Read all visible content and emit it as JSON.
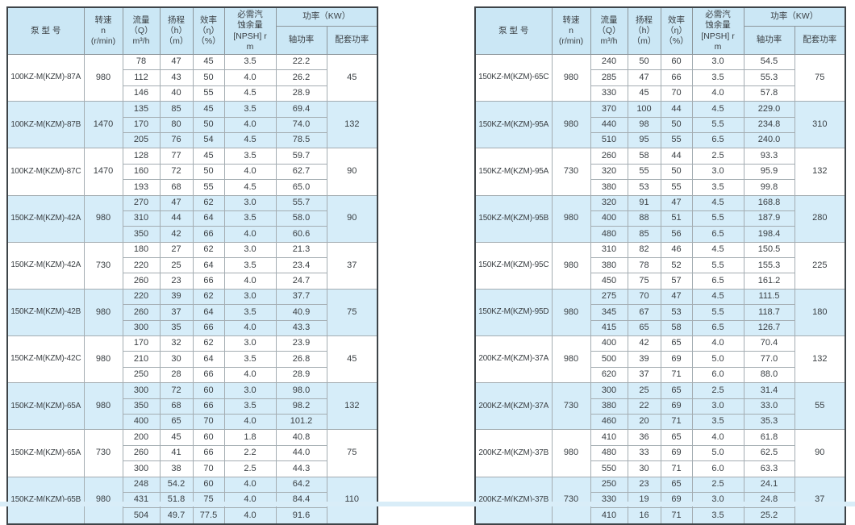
{
  "palette": {
    "header_bg": "#cbe7f5",
    "row_highlight_bg": "#d6edf9",
    "outer_border": "#3e4448",
    "inner_border": "#a4adb2",
    "group_border": "#6b7377",
    "page_bottom_strip": "#d9edf8",
    "text": "#3a3f43"
  },
  "header": {
    "model": "泵   型   号",
    "speed": "转速\nn\n(r/min)",
    "flow": "流量\n（Q）\nm³/h",
    "head": "扬程\n（h）\n（m）",
    "efficiency": "效率\n（η）\n（%）",
    "npsh": "必需汽\n蚀余量\n[NPSH] r\nm",
    "power": "功率（KW）",
    "shaft_power": "轴功率",
    "matching_power": "配套功率"
  },
  "tables": [
    {
      "groups": [
        {
          "model": "100KZ-M(KZM)-87A",
          "speed": "980",
          "highlight": false,
          "matching": "45",
          "rows": [
            [
              "78",
              "47",
              "45",
              "3.5",
              "22.2"
            ],
            [
              "112",
              "43",
              "50",
              "4.0",
              "26.2"
            ],
            [
              "146",
              "40",
              "55",
              "4.5",
              "28.9"
            ]
          ]
        },
        {
          "model": "100KZ-M(KZM)-87B",
          "speed": "1470",
          "highlight": true,
          "matching": "132",
          "rows": [
            [
              "135",
              "85",
              "45",
              "3.5",
              "69.4"
            ],
            [
              "170",
              "80",
              "50",
              "4.0",
              "74.0"
            ],
            [
              "205",
              "76",
              "54",
              "4.5",
              "78.5"
            ]
          ]
        },
        {
          "model": "100KZ-M(KZM)-87C",
          "speed": "1470",
          "highlight": false,
          "matching": "90",
          "rows": [
            [
              "128",
              "77",
              "45",
              "3.5",
              "59.7"
            ],
            [
              "160",
              "72",
              "50",
              "4.0",
              "62.7"
            ],
            [
              "193",
              "68",
              "55",
              "4.5",
              "65.0"
            ]
          ]
        },
        {
          "model": "150KZ-M(KZM)-42A",
          "speed": "980",
          "highlight": true,
          "matching": "90",
          "rows": [
            [
              "270",
              "47",
              "62",
              "3.0",
              "55.7"
            ],
            [
              "310",
              "44",
              "64",
              "3.5",
              "58.0"
            ],
            [
              "350",
              "42",
              "66",
              "4.0",
              "60.6"
            ]
          ]
        },
        {
          "model": "150KZ-M(KZM)-42A",
          "speed": "730",
          "highlight": false,
          "matching": "37",
          "rows": [
            [
              "180",
              "27",
              "62",
              "3.0",
              "21.3"
            ],
            [
              "220",
              "25",
              "64",
              "3.5",
              "23.4"
            ],
            [
              "260",
              "23",
              "66",
              "4.0",
              "24.7"
            ]
          ]
        },
        {
          "model": "150KZ-M(KZM)-42B",
          "speed": "980",
          "highlight": true,
          "matching": "75",
          "rows": [
            [
              "220",
              "39",
              "62",
              "3.0",
              "37.7"
            ],
            [
              "260",
              "37",
              "64",
              "3.5",
              "40.9"
            ],
            [
              "300",
              "35",
              "66",
              "4.0",
              "43.3"
            ]
          ]
        },
        {
          "model": "150KZ-M(KZM)-42C",
          "speed": "980",
          "highlight": false,
          "matching": "45",
          "rows": [
            [
              "170",
              "32",
              "62",
              "3.0",
              "23.9"
            ],
            [
              "210",
              "30",
              "64",
              "3.5",
              "26.8"
            ],
            [
              "250",
              "28",
              "66",
              "4.0",
              "28.9"
            ]
          ]
        },
        {
          "model": "150KZ-M(KZM)-65A",
          "speed": "980",
          "highlight": true,
          "matching": "132",
          "rows": [
            [
              "300",
              "72",
              "60",
              "3.0",
              "98.0"
            ],
            [
              "350",
              "68",
              "66",
              "3.5",
              "98.2"
            ],
            [
              "400",
              "65",
              "70",
              "4.0",
              "101.2"
            ]
          ]
        },
        {
          "model": "150KZ-M(KZM)-65A",
          "speed": "730",
          "highlight": false,
          "matching": "75",
          "rows": [
            [
              "200",
              "45",
              "60",
              "1.8",
              "40.8"
            ],
            [
              "260",
              "41",
              "66",
              "2.2",
              "44.0"
            ],
            [
              "300",
              "38",
              "70",
              "2.5",
              "44.3"
            ]
          ]
        },
        {
          "model": "150KZ-M(KZM)-65B",
          "speed": "980",
          "highlight": true,
          "matching": "110",
          "rows": [
            [
              "248",
              "54.2",
              "60",
              "4.0",
              "64.2"
            ],
            [
              "431",
              "51.8",
              "75",
              "4.0",
              "84.4"
            ],
            [
              "504",
              "49.7",
              "77.5",
              "4.0",
              "91.6"
            ]
          ]
        }
      ]
    },
    {
      "groups": [
        {
          "model": "150KZ-M(KZM)-65C",
          "speed": "980",
          "highlight": false,
          "matching": "75",
          "rows": [
            [
              "240",
              "50",
              "60",
              "3.0",
              "54.5"
            ],
            [
              "285",
              "47",
              "66",
              "3.5",
              "55.3"
            ],
            [
              "330",
              "45",
              "70",
              "4.0",
              "57.8"
            ]
          ]
        },
        {
          "model": "150KZ-M(KZM)-95A",
          "speed": "980",
          "highlight": true,
          "matching": "310",
          "rows": [
            [
              "370",
              "100",
              "44",
              "4.5",
              "229.0"
            ],
            [
              "440",
              "98",
              "50",
              "5.5",
              "234.8"
            ],
            [
              "510",
              "95",
              "55",
              "6.5",
              "240.0"
            ]
          ]
        },
        {
          "model": "150KZ-M(KZM)-95A",
          "speed": "730",
          "highlight": false,
          "matching": "132",
          "rows": [
            [
              "260",
              "58",
              "44",
              "2.5",
              "93.3"
            ],
            [
              "320",
              "55",
              "50",
              "3.0",
              "95.9"
            ],
            [
              "380",
              "53",
              "55",
              "3.5",
              "99.8"
            ]
          ]
        },
        {
          "model": "150KZ-M(KZM)-95B",
          "speed": "980",
          "highlight": true,
          "matching": "280",
          "rows": [
            [
              "320",
              "91",
              "47",
              "4.5",
              "168.8"
            ],
            [
              "400",
              "88",
              "51",
              "5.5",
              "187.9"
            ],
            [
              "480",
              "85",
              "56",
              "6.5",
              "198.4"
            ]
          ]
        },
        {
          "model": "150KZ-M(KZM)-95C",
          "speed": "980",
          "highlight": false,
          "matching": "225",
          "rows": [
            [
              "310",
              "82",
              "46",
              "4.5",
              "150.5"
            ],
            [
              "380",
              "78",
              "52",
              "5.5",
              "155.3"
            ],
            [
              "450",
              "75",
              "57",
              "6.5",
              "161.2"
            ]
          ]
        },
        {
          "model": "150KZ-M(KZM)-95D",
          "speed": "980",
          "highlight": true,
          "matching": "180",
          "rows": [
            [
              "275",
              "70",
              "47",
              "4.5",
              "111.5"
            ],
            [
              "345",
              "67",
              "53",
              "5.5",
              "118.7"
            ],
            [
              "415",
              "65",
              "58",
              "6.5",
              "126.7"
            ]
          ]
        },
        {
          "model": "200KZ-M(KZM)-37A",
          "speed": "980",
          "highlight": false,
          "matching": "132",
          "rows": [
            [
              "400",
              "42",
              "65",
              "4.0",
              "70.4"
            ],
            [
              "500",
              "39",
              "69",
              "5.0",
              "77.0"
            ],
            [
              "620",
              "37",
              "71",
              "6.0",
              "88.0"
            ]
          ]
        },
        {
          "model": "200KZ-M(KZM)-37A",
          "speed": "730",
          "highlight": true,
          "matching": "55",
          "rows": [
            [
              "300",
              "25",
              "65",
              "2.5",
              "31.4"
            ],
            [
              "380",
              "22",
              "69",
              "3.0",
              "33.0"
            ],
            [
              "460",
              "20",
              "71",
              "3.5",
              "35.3"
            ]
          ]
        },
        {
          "model": "200KZ-M(KZM)-37B",
          "speed": "980",
          "highlight": false,
          "matching": "90",
          "rows": [
            [
              "410",
              "36",
              "65",
              "4.0",
              "61.8"
            ],
            [
              "480",
              "33",
              "69",
              "5.0",
              "62.5"
            ],
            [
              "550",
              "30",
              "71",
              "6.0",
              "63.3"
            ]
          ]
        },
        {
          "model": "200KZ-M(KZM)-37B",
          "speed": "730",
          "highlight": true,
          "matching": "37",
          "rows": [
            [
              "250",
              "23",
              "65",
              "2.5",
              "24.1"
            ],
            [
              "330",
              "19",
              "69",
              "3.0",
              "24.8"
            ],
            [
              "410",
              "16",
              "71",
              "3.5",
              "25.2"
            ]
          ]
        }
      ]
    }
  ]
}
